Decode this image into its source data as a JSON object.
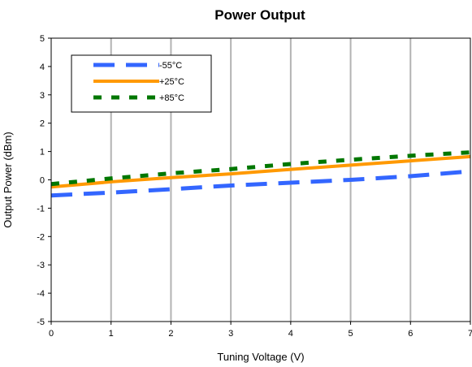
{
  "chart_data": {
    "type": "line",
    "title": "Power Output",
    "xlabel": "Tuning Voltage (V)",
    "ylabel": "Output Power (dBm)",
    "xlim": [
      0,
      7
    ],
    "ylim": [
      -5,
      5
    ],
    "xticks": [
      0,
      1,
      2,
      3,
      4,
      5,
      6,
      7
    ],
    "yticks": [
      -5,
      -4,
      -3,
      -2,
      -1,
      0,
      1,
      2,
      3,
      4,
      5
    ],
    "grid": "vertical",
    "legend_position": "top-left",
    "series": [
      {
        "name": "-55°C",
        "color": "#3366ff",
        "style": "dashed",
        "x": [
          0,
          1,
          2,
          3,
          4,
          5,
          6,
          7
        ],
        "y": [
          -0.55,
          -0.45,
          -0.33,
          -0.2,
          -0.1,
          0.0,
          0.13,
          0.3
        ]
      },
      {
        "name": "+25°C",
        "color": "#ff9900",
        "style": "solid",
        "x": [
          0,
          1,
          2,
          3,
          4,
          5,
          6,
          7
        ],
        "y": [
          -0.25,
          -0.07,
          0.08,
          0.21,
          0.37,
          0.52,
          0.67,
          0.82
        ]
      },
      {
        "name": "+85°C",
        "color": "#007700",
        "style": "dotted",
        "x": [
          0,
          1,
          2,
          3,
          4,
          5,
          6,
          7
        ],
        "y": [
          -0.15,
          0.05,
          0.23,
          0.38,
          0.56,
          0.71,
          0.85,
          0.97
        ]
      }
    ]
  }
}
